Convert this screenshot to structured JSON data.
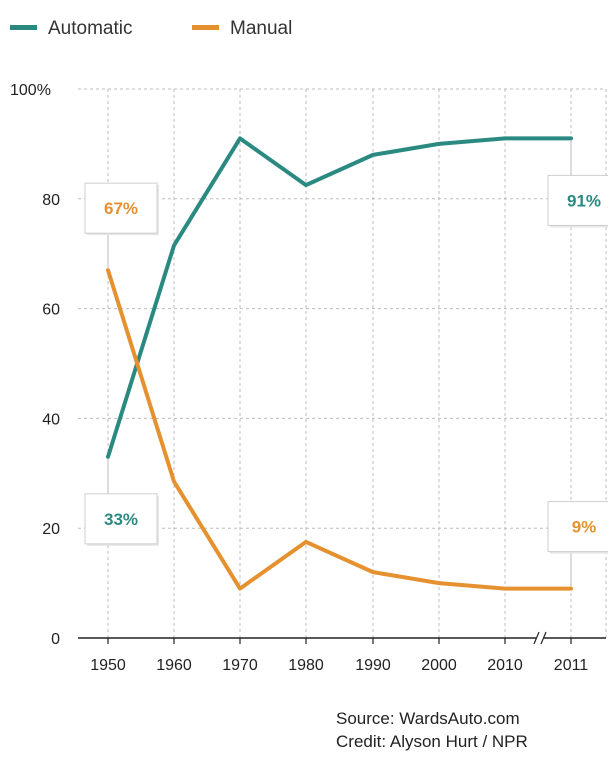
{
  "chart_data": {
    "type": "line",
    "categories": [
      "1950",
      "1960",
      "1970",
      "1980",
      "1990",
      "2000",
      "2010",
      "2011"
    ],
    "series": [
      {
        "name": "Automatic",
        "color": "#2a8a82",
        "values": [
          33,
          71.5,
          91,
          82.5,
          88,
          90,
          91,
          91
        ]
      },
      {
        "name": "Manual",
        "color": "#e6912f",
        "values": [
          67,
          28.5,
          9,
          17.5,
          12,
          10,
          9,
          9
        ]
      }
    ],
    "ylim": [
      0,
      100
    ],
    "yticks": [
      {
        "value": 0,
        "label": "0"
      },
      {
        "value": 20,
        "label": "20"
      },
      {
        "value": 40,
        "label": "40"
      },
      {
        "value": 60,
        "label": "60"
      },
      {
        "value": 80,
        "label": "80"
      },
      {
        "value": 100,
        "label": "100%"
      }
    ],
    "grid": true,
    "legend": "top-left",
    "axis_break": "between 2010 and 2011",
    "annotations": [
      {
        "series": "Manual",
        "category": "1950",
        "text": "67%",
        "position": "above"
      },
      {
        "series": "Automatic",
        "category": "1950",
        "text": "33%",
        "position": "below"
      },
      {
        "series": "Automatic",
        "category": "2011",
        "text": "91%",
        "position": "below"
      },
      {
        "series": "Manual",
        "category": "2011",
        "text": "9%",
        "position": "above"
      }
    ]
  },
  "source": {
    "line1": "Source: WardsAuto.com",
    "line2": "Credit: Alyson Hurt / NPR"
  }
}
